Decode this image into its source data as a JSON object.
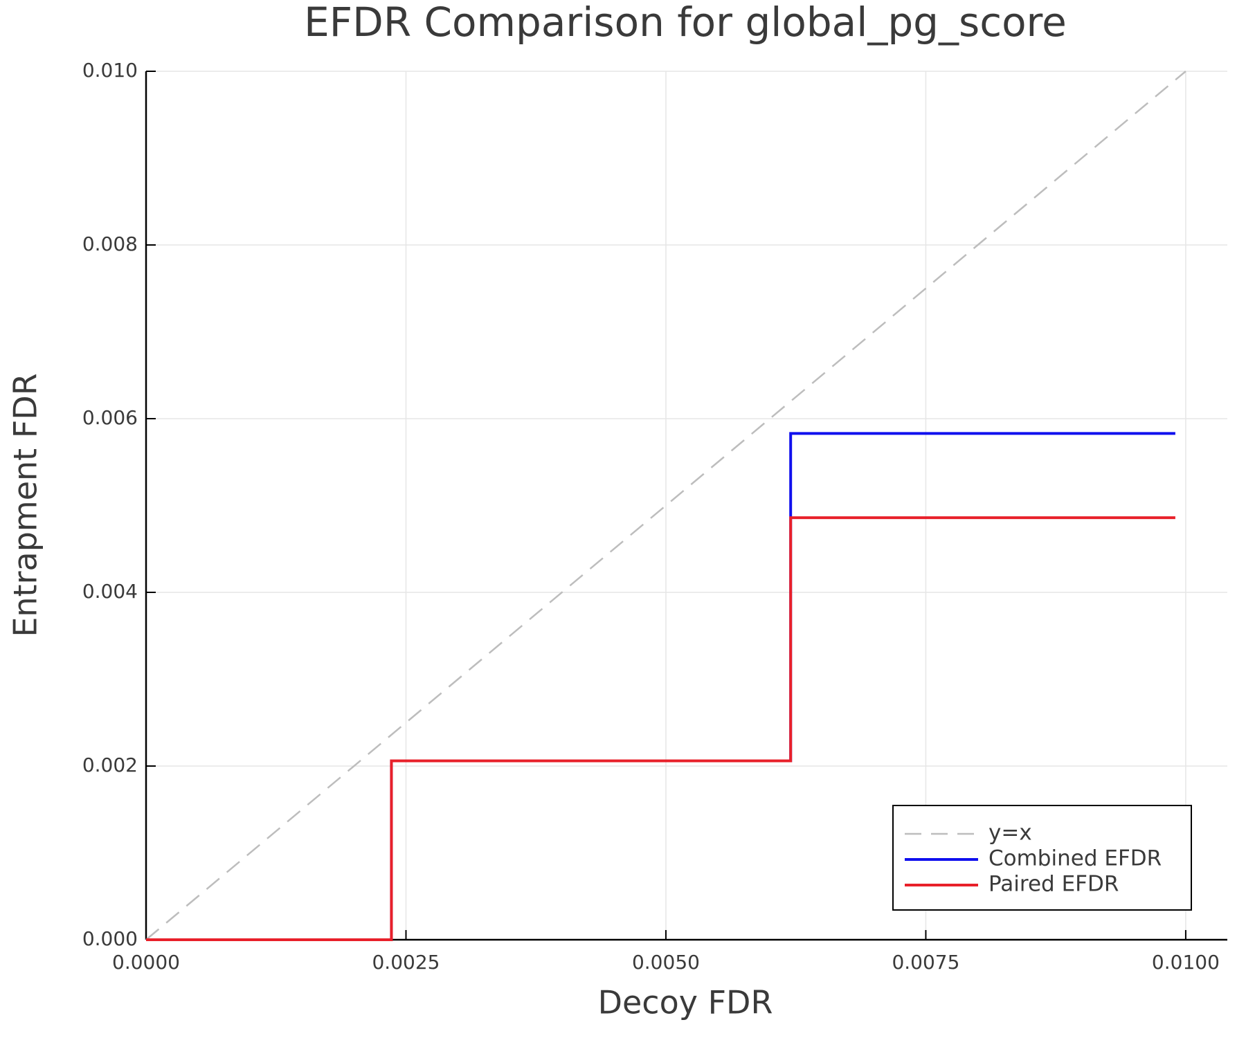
{
  "chart_data": {
    "type": "line",
    "title": "EFDR Comparison for global_pg_score",
    "x_label": "Decoy FDR",
    "y_label": "Entrapment FDR",
    "x": [
      0,
      0.00236,
      0.00236,
      0.0062,
      0.0062,
      0.0099
    ],
    "series": [
      {
        "name": "y=x",
        "color": "#bdbdbd",
        "dashed": true,
        "x": [
          0,
          0.01
        ],
        "values": [
          0,
          0.01
        ]
      },
      {
        "name": "Combined EFDR",
        "color": "#1010ee",
        "dashed": false,
        "values": [
          0,
          0,
          0.00206,
          0.00206,
          0.00583,
          0.00583
        ]
      },
      {
        "name": "Paired EFDR",
        "color": "#e8202a",
        "dashed": false,
        "values": [
          0,
          0,
          0.00206,
          0.00206,
          0.00486,
          0.00486
        ]
      }
    ],
    "xlim": [
      0,
      0.0104
    ],
    "ylim": [
      0,
      0.01
    ],
    "xticks": [
      {
        "value": 0,
        "label": "0.0000"
      },
      {
        "value": 0.0025,
        "label": "0.0025"
      },
      {
        "value": 0.005,
        "label": "0.0050"
      },
      {
        "value": 0.0075,
        "label": "0.0075"
      },
      {
        "value": 0.01,
        "label": "0.0100"
      }
    ],
    "yticks": [
      {
        "value": 0,
        "label": "0.000"
      },
      {
        "value": 0.002,
        "label": "0.002"
      },
      {
        "value": 0.004,
        "label": "0.004"
      },
      {
        "value": 0.006,
        "label": "0.006"
      },
      {
        "value": 0.008,
        "label": "0.008"
      },
      {
        "value": 0.01,
        "label": "0.010"
      }
    ],
    "grid": true,
    "legend": "bottom-right"
  }
}
